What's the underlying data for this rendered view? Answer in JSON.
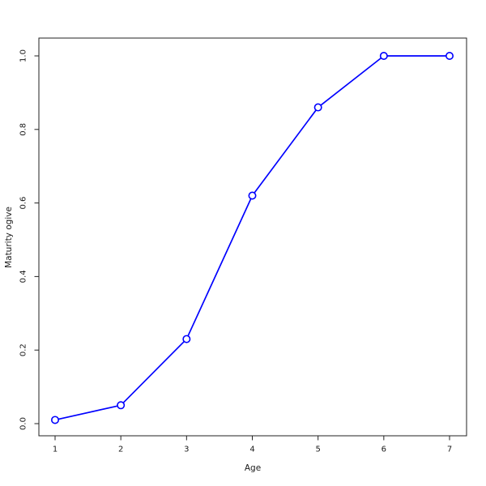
{
  "chart_data": {
    "type": "line",
    "title": "",
    "xlabel": "Age",
    "ylabel": "Maturity ogive",
    "x": [
      1,
      2,
      3,
      4,
      5,
      6,
      7
    ],
    "series": [
      {
        "name": "Maturity ogive",
        "values": [
          0.01,
          0.05,
          0.23,
          0.62,
          0.86,
          1.0,
          1.0
        ]
      }
    ],
    "xlim": [
      1,
      7
    ],
    "ylim": [
      0.0,
      1.0
    ],
    "xticks": [
      1,
      2,
      3,
      4,
      5,
      6,
      7
    ],
    "xtick_labels": [
      "1",
      "2",
      "3",
      "4",
      "5",
      "6",
      "7"
    ],
    "yticks": [
      0.0,
      0.2,
      0.4,
      0.6,
      0.8,
      1.0
    ],
    "ytick_labels": [
      "0.0",
      "0.2",
      "0.4",
      "0.6",
      "0.8",
      "1.0"
    ],
    "grid": false,
    "legend": "none",
    "colors": {
      "line": "#0000ff",
      "marker_stroke": "#0000ff",
      "marker_fill": "#ffffff",
      "axis": "#222222",
      "text": "#1a1a1a",
      "background": "#ffffff"
    },
    "marker": "open-circle"
  }
}
